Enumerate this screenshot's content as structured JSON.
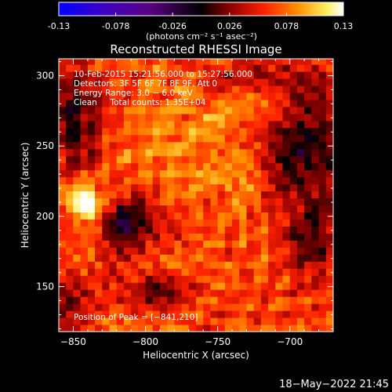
{
  "chart_data": {
    "type": "heatmap",
    "title": "Reconstructed RHESSI Image",
    "colorbar": {
      "tick_labels": [
        "-0.13",
        "-0.078",
        "-0.026",
        "0.026",
        "0.078",
        "0.13"
      ],
      "range": [
        -0.13,
        0.13
      ],
      "units_label": "(photons cm⁻² s⁻¹ asec⁻²)",
      "colors": [
        "#0000ff",
        "#3c00c8",
        "#5a0082",
        "#000000",
        "#8c0000",
        "#ff2000",
        "#ff9000",
        "#ffee60",
        "#ffffff"
      ]
    },
    "xlabel": "Heliocentric X (arcsec)",
    "ylabel": "Heliocentric Y (arcsec)",
    "xlim": [
      -860,
      -670
    ],
    "ylim": [
      118,
      312
    ],
    "x_ticks": [
      -850,
      -800,
      -750,
      -700
    ],
    "y_ticks": [
      150,
      200,
      250,
      300
    ],
    "x_tick_labels": [
      "−850",
      "−800",
      "−750",
      "−700"
    ],
    "y_tick_labels": [
      "150",
      "200",
      "250",
      "300"
    ],
    "annotations": [
      "10-Feb-2015 15:21:56.000 to 15:27:56.000",
      "Detectors: 3F 5F 6F 7F 8F 9F, Att 0",
      "Energy Range: 3.0 − 6.0 keV",
      "Clean     Total counts: 1.35E+04"
    ],
    "peak_label": "Position of Peak = [−841,210]",
    "peak": {
      "x": -841,
      "y": 210
    },
    "grid": false
  },
  "footer": {
    "timestamp": "18−May−2022 21:45"
  }
}
